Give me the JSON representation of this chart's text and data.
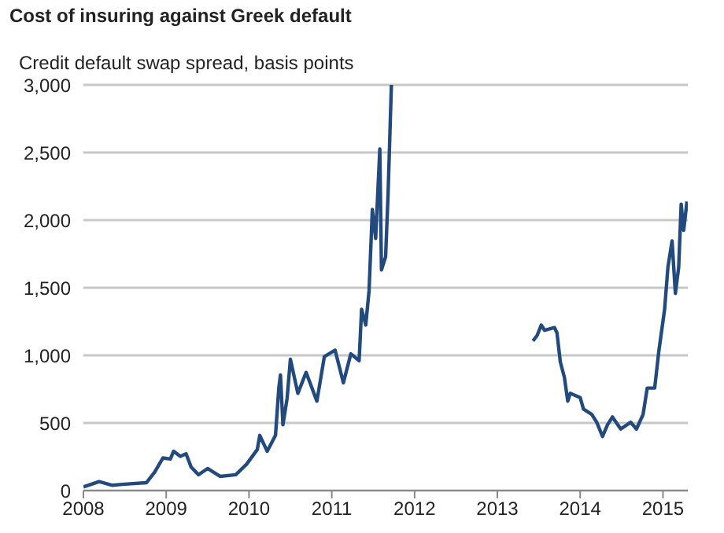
{
  "chart_data": {
    "type": "line",
    "title": "Cost of insuring against Greek default",
    "ylabel": "Credit default swap spread, basis points",
    "x": [
      2008.0,
      2008.19,
      2008.35,
      2008.5,
      2008.76,
      2008.86,
      2008.96,
      2009.05,
      2009.09,
      2009.17,
      2009.24,
      2009.3,
      2009.39,
      2009.5,
      2009.65,
      2009.84,
      2009.97,
      2010.1,
      2010.13,
      2010.22,
      2010.32,
      2010.36,
      2010.38,
      2010.41,
      2010.46,
      2010.5,
      2010.59,
      2010.69,
      2010.82,
      2010.91,
      2011.04,
      2011.14,
      2011.23,
      2011.27,
      2011.33,
      2011.36,
      2011.41,
      2011.45,
      2011.49,
      2011.53,
      2011.58,
      2011.6,
      2011.65,
      2011.68,
      2011.72,
      2012.5,
      2013.43,
      2013.48,
      2013.53,
      2013.57,
      2013.69,
      2013.72,
      2013.76,
      2013.81,
      2013.85,
      2013.88,
      2014.0,
      2014.04,
      2014.14,
      2014.2,
      2014.27,
      2014.33,
      2014.39,
      2014.49,
      2014.61,
      2014.68,
      2014.76,
      2014.81,
      2014.9,
      2014.95,
      2015.02,
      2015.06,
      2015.11,
      2015.15,
      2015.19,
      2015.22,
      2015.25,
      2015.29
    ],
    "series": [
      {
        "color": "#234a7c",
        "values": [
          27,
          66,
          39,
          47,
          58,
          136,
          241,
          233,
          291,
          253,
          272,
          175,
          117,
          163,
          105,
          117,
          194,
          303,
          408,
          291,
          408,
          758,
          855,
          486,
          680,
          971,
          719,
          874,
          661,
          991,
          1038,
          797,
          1011,
          991,
          960,
          1341,
          1224,
          1477,
          2079,
          1865,
          2526,
          1632,
          1729,
          2196,
          3000,
          null,
          1107,
          1147,
          1224,
          1185,
          1205,
          1166,
          952,
          836,
          661,
          719,
          688,
          602,
          563,
          505,
          400,
          486,
          544,
          455,
          505,
          455,
          563,
          758,
          758,
          1030,
          1341,
          1652,
          1846,
          1458,
          1652,
          2118,
          1924,
          2138
        ]
      }
    ],
    "xlim": [
      2008,
      2015.3
    ],
    "xticks": [
      2008,
      2009,
      2010,
      2011,
      2012,
      2013,
      2014,
      2015
    ],
    "ylim": [
      0,
      3000
    ],
    "yticks": [
      0,
      500,
      {
        "value": 1000,
        "label": "1,000"
      },
      {
        "value": 1500,
        "label": "1,500"
      },
      {
        "value": 2000,
        "label": "2,000"
      },
      {
        "value": 2500,
        "label": "2,500"
      },
      {
        "value": 3000,
        "label": "3,000"
      }
    ],
    "grid": "y",
    "marker": "none",
    "line_style": "solid",
    "legend": false
  }
}
